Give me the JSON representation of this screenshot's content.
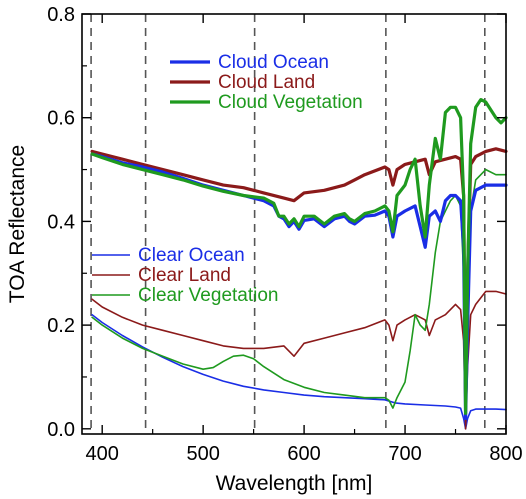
{
  "chart_data": {
    "type": "line",
    "xlabel": "Wavelength [nm]",
    "ylabel": "TOA Reflectance",
    "xlim": [
      380,
      800
    ],
    "ylim": [
      -0.01,
      0.8
    ],
    "xticks": [
      400,
      500,
      600,
      700,
      800
    ],
    "yticks": [
      0.0,
      0.2,
      0.4,
      0.6,
      0.8
    ],
    "ytick_labels": [
      "0.0",
      "0.2",
      "0.4",
      "0.6",
      "0.8"
    ],
    "reference_lines_x": [
      389,
      443,
      551,
      681,
      779
    ],
    "legend_placement": "upper-center and middle-left, two groups",
    "series": [
      {
        "name": "Cloud Ocean",
        "color": "#1a2ee6",
        "width": 3.2,
        "x": [
          390,
          400,
          420,
          440,
          460,
          480,
          500,
          520,
          540,
          560,
          570,
          575,
          580,
          585,
          590,
          595,
          600,
          610,
          620,
          630,
          640,
          645,
          650,
          660,
          670,
          680,
          684,
          688,
          692,
          700,
          710,
          715,
          720,
          724,
          730,
          735,
          740,
          745,
          750,
          755,
          758,
          760,
          762,
          765,
          770,
          780,
          790,
          800
        ],
        "y": [
          0.53,
          0.525,
          0.513,
          0.505,
          0.495,
          0.483,
          0.47,
          0.46,
          0.45,
          0.44,
          0.43,
          0.41,
          0.405,
          0.39,
          0.4,
          0.385,
          0.402,
          0.405,
          0.39,
          0.405,
          0.41,
          0.4,
          0.395,
          0.41,
          0.412,
          0.42,
          0.41,
          0.37,
          0.41,
          0.42,
          0.43,
          0.39,
          0.35,
          0.41,
          0.42,
          0.4,
          0.44,
          0.45,
          0.45,
          0.44,
          0.35,
          0.02,
          0.2,
          0.42,
          0.46,
          0.47,
          0.47,
          0.47
        ]
      },
      {
        "name": "Cloud Land",
        "color": "#8b1a1a",
        "width": 3.2,
        "x": [
          390,
          400,
          420,
          440,
          460,
          480,
          500,
          520,
          540,
          560,
          580,
          590,
          600,
          620,
          640,
          650,
          660,
          680,
          684,
          688,
          692,
          700,
          720,
          724,
          730,
          740,
          750,
          755,
          758,
          760,
          762,
          765,
          770,
          780,
          790,
          800
        ],
        "y": [
          0.535,
          0.53,
          0.52,
          0.51,
          0.5,
          0.49,
          0.48,
          0.47,
          0.465,
          0.455,
          0.445,
          0.44,
          0.455,
          0.46,
          0.47,
          0.48,
          0.49,
          0.505,
          0.5,
          0.47,
          0.5,
          0.51,
          0.52,
          0.49,
          0.515,
          0.52,
          0.525,
          0.52,
          0.45,
          0.06,
          0.3,
          0.51,
          0.525,
          0.535,
          0.54,
          0.535
        ]
      },
      {
        "name": "Cloud Vegetation",
        "color": "#1f9a1f",
        "width": 3.2,
        "x": [
          390,
          400,
          420,
          440,
          460,
          480,
          500,
          520,
          540,
          560,
          570,
          575,
          580,
          585,
          590,
          595,
          600,
          610,
          620,
          630,
          640,
          645,
          650,
          660,
          670,
          680,
          684,
          688,
          692,
          700,
          705,
          710,
          715,
          720,
          724,
          730,
          735,
          740,
          745,
          750,
          755,
          758,
          760,
          762,
          765,
          770,
          775,
          780,
          790,
          795,
          800
        ],
        "y": [
          0.53,
          0.523,
          0.51,
          0.5,
          0.49,
          0.48,
          0.468,
          0.458,
          0.45,
          0.445,
          0.435,
          0.41,
          0.41,
          0.395,
          0.405,
          0.39,
          0.41,
          0.41,
          0.395,
          0.41,
          0.415,
          0.405,
          0.4,
          0.415,
          0.42,
          0.43,
          0.42,
          0.38,
          0.45,
          0.47,
          0.5,
          0.52,
          0.43,
          0.37,
          0.47,
          0.56,
          0.52,
          0.61,
          0.62,
          0.62,
          0.6,
          0.45,
          0.03,
          0.3,
          0.55,
          0.62,
          0.635,
          0.63,
          0.6,
          0.59,
          0.6
        ]
      },
      {
        "name": "Clear Ocean",
        "color": "#1a2ee6",
        "width": 1.6,
        "x": [
          390,
          400,
          420,
          440,
          460,
          480,
          500,
          520,
          540,
          560,
          580,
          600,
          620,
          640,
          660,
          680,
          690,
          700,
          720,
          740,
          750,
          755,
          758,
          760,
          762,
          765,
          770,
          780,
          790,
          800
        ],
        "y": [
          0.22,
          0.205,
          0.18,
          0.158,
          0.138,
          0.12,
          0.105,
          0.092,
          0.082,
          0.075,
          0.07,
          0.065,
          0.062,
          0.06,
          0.058,
          0.056,
          0.05,
          0.048,
          0.046,
          0.044,
          0.042,
          0.04,
          0.02,
          0.0,
          0.02,
          0.035,
          0.038,
          0.038,
          0.038,
          0.037
        ]
      },
      {
        "name": "Clear Land",
        "color": "#8b1a1a",
        "width": 1.6,
        "x": [
          390,
          400,
          420,
          440,
          460,
          480,
          500,
          520,
          540,
          560,
          580,
          590,
          600,
          620,
          640,
          660,
          680,
          684,
          688,
          692,
          700,
          710,
          720,
          724,
          730,
          740,
          750,
          755,
          758,
          760,
          762,
          765,
          770,
          780,
          790,
          800
        ],
        "y": [
          0.25,
          0.235,
          0.215,
          0.2,
          0.19,
          0.18,
          0.17,
          0.16,
          0.155,
          0.155,
          0.16,
          0.14,
          0.165,
          0.175,
          0.185,
          0.195,
          0.21,
          0.2,
          0.17,
          0.2,
          0.21,
          0.22,
          0.21,
          0.18,
          0.21,
          0.22,
          0.24,
          0.23,
          0.17,
          0.0,
          0.12,
          0.22,
          0.24,
          0.265,
          0.265,
          0.26
        ]
      },
      {
        "name": "Clear Vegetation",
        "color": "#1f9a1f",
        "width": 1.6,
        "x": [
          390,
          400,
          420,
          440,
          460,
          480,
          500,
          510,
          520,
          530,
          540,
          550,
          560,
          580,
          600,
          620,
          640,
          660,
          680,
          684,
          688,
          692,
          700,
          705,
          710,
          715,
          720,
          724,
          730,
          735,
          740,
          745,
          750,
          755,
          758,
          760,
          762,
          765,
          770,
          780,
          790,
          800
        ],
        "y": [
          0.215,
          0.2,
          0.175,
          0.155,
          0.14,
          0.125,
          0.115,
          0.118,
          0.13,
          0.14,
          0.142,
          0.135,
          0.12,
          0.095,
          0.08,
          0.07,
          0.065,
          0.06,
          0.06,
          0.055,
          0.04,
          0.06,
          0.09,
          0.15,
          0.22,
          0.2,
          0.19,
          0.24,
          0.34,
          0.4,
          0.42,
          0.44,
          0.45,
          0.43,
          0.3,
          0.02,
          0.2,
          0.42,
          0.48,
          0.5,
          0.49,
          0.49
        ]
      }
    ]
  }
}
